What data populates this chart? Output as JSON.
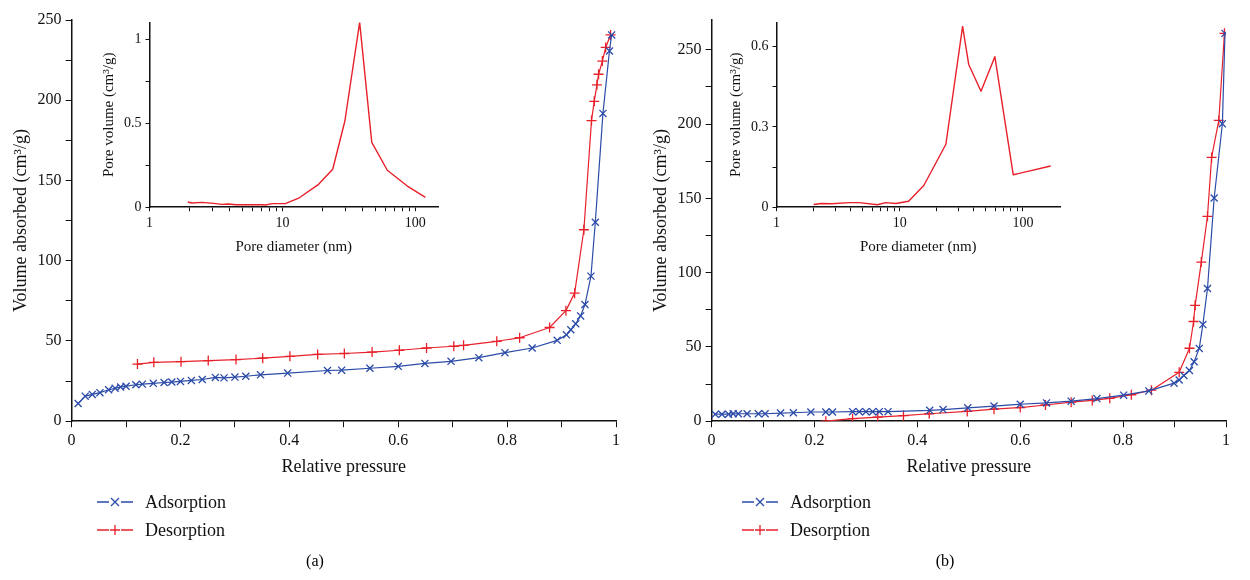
{
  "chart_data": [
    {
      "type": "line",
      "xlabel": "Relative pressure",
      "ylabel": "Volume absorbed (cm³/g)",
      "xlim": [
        0,
        1
      ],
      "ylim": [
        0,
        250
      ],
      "xticks": [
        0,
        {
          "value": 0.1,
          "label": null
        },
        0.2,
        {
          "value": 0.3,
          "label": null
        },
        0.4,
        {
          "value": 0.5,
          "label": null
        },
        0.6,
        {
          "value": 0.7,
          "label": null
        },
        0.8,
        {
          "value": 0.9,
          "label": null
        },
        1
      ],
      "yticks": [
        0,
        {
          "value": 25,
          "label": null
        },
        50,
        {
          "value": 75,
          "label": null
        },
        100,
        {
          "value": 125,
          "label": null
        },
        150,
        {
          "value": 175,
          "label": null
        },
        200,
        {
          "value": 225,
          "label": null
        },
        250
      ],
      "grid": false,
      "legend": "bottom left",
      "line_style": "solid",
      "annotations": [
        "(a)"
      ],
      "series": [
        {
          "name": "Adsorption",
          "color": "#2b4ba8",
          "marker": "x",
          "x": [
            0.012,
            0.025,
            0.038,
            0.052,
            0.068,
            0.08,
            0.09,
            0.1,
            0.118,
            0.13,
            0.15,
            0.17,
            0.184,
            0.2,
            0.22,
            0.24,
            0.264,
            0.28,
            0.3,
            0.32,
            0.347,
            0.397,
            0.47,
            0.496,
            0.548,
            0.6,
            0.649,
            0.697,
            0.748,
            0.796,
            0.846,
            0.892,
            0.909,
            0.917,
            0.926,
            0.935,
            0.943,
            0.954,
            0.962,
            0.976,
            0.988,
            0.992
          ],
          "values": [
            11,
            15.6,
            16.7,
            17.8,
            19.6,
            20.5,
            21.3,
            21.8,
            22.7,
            23.1,
            23.6,
            24.1,
            24.4,
            24.8,
            25.4,
            26,
            27.3,
            27,
            27.5,
            28,
            28.9,
            30,
            31.6,
            31.8,
            33,
            34.2,
            36,
            37.3,
            39.6,
            42.7,
            45.6,
            50.4,
            53.8,
            57,
            60.7,
            65.6,
            72.7,
            90.4,
            124,
            191.8,
            230.7,
            240.7
          ]
        },
        {
          "name": "Desorption",
          "color": "#e8202a",
          "marker": "cross",
          "x": [
            0.121,
            0.151,
            0.201,
            0.251,
            0.302,
            0.351,
            0.401,
            0.452,
            0.501,
            0.552,
            0.602,
            0.652,
            0.702,
            0.72,
            0.781,
            0.823,
            0.878,
            0.908,
            0.924,
            0.941,
            0.955,
            0.96,
            0.965,
            0.968,
            0.975,
            0.981,
            0.99
          ],
          "values": [
            35.6,
            36.7,
            37.1,
            37.8,
            38.4,
            39.3,
            40.4,
            41.6,
            42.2,
            43.1,
            44.2,
            45.6,
            46.7,
            47.3,
            49.8,
            52,
            58.4,
            68.9,
            79.8,
            119.3,
            187.3,
            199.3,
            209.6,
            216.2,
            224.4,
            232.9,
            240.7
          ]
        }
      ]
    },
    {
      "type": "line",
      "xlabel": "Pore diameter (nm)",
      "ylabel": "Pore volume (cm³/g)",
      "log": "x",
      "xlim": [
        1,
        148
      ],
      "ylim": [
        0,
        1.1
      ],
      "xticks": [
        1,
        {
          "value": 2,
          "label": null
        },
        {
          "value": 3,
          "label": null
        },
        {
          "value": 4,
          "label": null
        },
        {
          "value": 5,
          "label": null
        },
        {
          "value": 6,
          "label": null
        },
        {
          "value": 7,
          "label": null
        },
        {
          "value": 8,
          "label": null
        },
        {
          "value": 9,
          "label": null
        },
        10,
        {
          "value": 20,
          "label": null
        },
        {
          "value": 30,
          "label": null
        },
        {
          "value": 40,
          "label": null
        },
        {
          "value": 50,
          "label": null
        },
        {
          "value": 60,
          "label": null
        },
        {
          "value": 70,
          "label": null
        },
        {
          "value": 80,
          "label": null
        },
        {
          "value": 90,
          "label": null
        },
        100
      ],
      "yticks": [
        0,
        {
          "value": 0.25,
          "label": null
        },
        0.5,
        {
          "value": 0.75,
          "label": null
        },
        1
      ],
      "grid": false,
      "marker": "none",
      "line_style": "solid",
      "series": [
        {
          "color": "#e8202a",
          "x": [
            1.94,
            2.08,
            2.48,
            3.05,
            3.5,
            3.9,
            4.5,
            7.0,
            7.45,
            8.4,
            10.5,
            13.4,
            18.7,
            23.9,
            29.5,
            38.1,
            47,
            61.5,
            87,
            119
          ],
          "values": [
            0.031,
            0.025,
            0.029,
            0.023,
            0.017,
            0.019,
            0.015,
            0.015,
            0.013,
            0.021,
            0.021,
            0.056,
            0.136,
            0.226,
            0.513,
            1.1,
            0.386,
            0.22,
            0.126,
            0.059
          ]
        }
      ]
    },
    {
      "type": "line",
      "xlabel": "Relative pressure",
      "ylabel": "Volume absorbed (cm³/g)",
      "xlim": [
        0,
        1
      ],
      "ylim": [
        0,
        270
      ],
      "xticks": [
        0,
        {
          "value": 0.1,
          "label": null
        },
        0.2,
        {
          "value": 0.3,
          "label": null
        },
        0.4,
        {
          "value": 0.5,
          "label": null
        },
        0.6,
        {
          "value": 0.7,
          "label": null
        },
        0.8,
        {
          "value": 0.9,
          "label": null
        },
        1
      ],
      "yticks": [
        0,
        {
          "value": 25,
          "label": null
        },
        50,
        {
          "value": 75,
          "label": null
        },
        100,
        {
          "value": 125,
          "label": null
        },
        150,
        {
          "value": 175,
          "label": null
        },
        200,
        {
          "value": 225,
          "label": null
        },
        250
      ],
      "grid": false,
      "legend": "bottom left",
      "line_style": "solid",
      "annotations": [
        "(b)"
      ],
      "series": [
        {
          "name": "Adsorption",
          "color": "#2b4ba8",
          "marker": "x",
          "x": [
            0.007,
            0.02,
            0.033,
            0.042,
            0.052,
            0.069,
            0.091,
            0.104,
            0.134,
            0.159,
            0.193,
            0.222,
            0.235,
            0.274,
            0.287,
            0.3,
            0.313,
            0.326,
            0.343,
            0.424,
            0.45,
            0.498,
            0.549,
            0.6,
            0.651,
            0.699,
            0.749,
            0.801,
            0.85,
            0.899,
            0.909,
            0.918,
            0.929,
            0.938,
            0.948,
            0.955,
            0.964,
            0.977,
            0.993,
            0.998
          ],
          "values": [
            4.7,
            4.7,
            4.7,
            5,
            5,
            5,
            5,
            5,
            5.5,
            5.7,
            6.2,
            6.2,
            6.2,
            6.4,
            6.4,
            6.4,
            6.4,
            6.4,
            6.4,
            7.3,
            7.8,
            9,
            10.2,
            11.4,
            12.3,
            13.5,
            15.2,
            17.5,
            20.4,
            25.6,
            27.7,
            30.8,
            34.1,
            40,
            49,
            65,
            89.3,
            150.2,
            200.2,
            261
          ]
        },
        {
          "name": "Desorption",
          "color": "#e8202a",
          "marker": "cross",
          "x": [
            0.222,
            0.274,
            0.323,
            0.373,
            0.423,
            0.497,
            0.549,
            0.6,
            0.649,
            0.699,
            0.74,
            0.774,
            0.816,
            0.855,
            0.909,
            0.929,
            0.937,
            0.94,
            0.952,
            0.964,
            0.972,
            0.986,
            0.997
          ],
          "values": [
            0,
            1.7,
            2.8,
            3.8,
            5,
            6.6,
            8.1,
            9.2,
            10.9,
            12.8,
            14,
            15.4,
            17.8,
            20.9,
            32.9,
            49.1,
            67.1,
            78,
            107.1,
            137.9,
            177.5,
            202.4,
            261
          ]
        }
      ]
    },
    {
      "type": "line",
      "xlabel": "Pore diameter (nm)",
      "ylabel": "Pore volume (cm³/g)",
      "log": "x",
      "xlim": [
        1,
        200
      ],
      "ylim": [
        0,
        0.69
      ],
      "xticks": [
        1,
        {
          "value": 2,
          "label": null
        },
        {
          "value": 3,
          "label": null
        },
        {
          "value": 4,
          "label": null
        },
        {
          "value": 5,
          "label": null
        },
        {
          "value": 6,
          "label": null
        },
        {
          "value": 7,
          "label": null
        },
        {
          "value": 8,
          "label": null
        },
        {
          "value": 9,
          "label": null
        },
        10,
        {
          "value": 20,
          "label": null
        },
        {
          "value": 30,
          "label": null
        },
        {
          "value": 40,
          "label": null
        },
        {
          "value": 50,
          "label": null
        },
        {
          "value": 60,
          "label": null
        },
        {
          "value": 70,
          "label": null
        },
        {
          "value": 80,
          "label": null
        },
        {
          "value": 90,
          "label": null
        },
        100
      ],
      "yticks": [
        0,
        {
          "value": 0.15,
          "label": null
        },
        0.3,
        {
          "value": 0.45,
          "label": null
        },
        0.6
      ],
      "grid": false,
      "marker": "none",
      "line_style": "solid",
      "series": [
        {
          "color": "#e8202a",
          "x": [
            2.0,
            2.3,
            2.8,
            3.9,
            4.7,
            6.6,
            7.7,
            9.3,
            11.8,
            15.7,
            23.7,
            32.4,
            36.3,
            45.7,
            59.2,
            83.5,
            168
          ],
          "values": [
            0.01,
            0.014,
            0.013,
            0.017,
            0.017,
            0.009,
            0.017,
            0.014,
            0.022,
            0.081,
            0.235,
            0.675,
            0.533,
            0.433,
            0.562,
            0.121,
            0.154
          ]
        }
      ]
    }
  ]
}
